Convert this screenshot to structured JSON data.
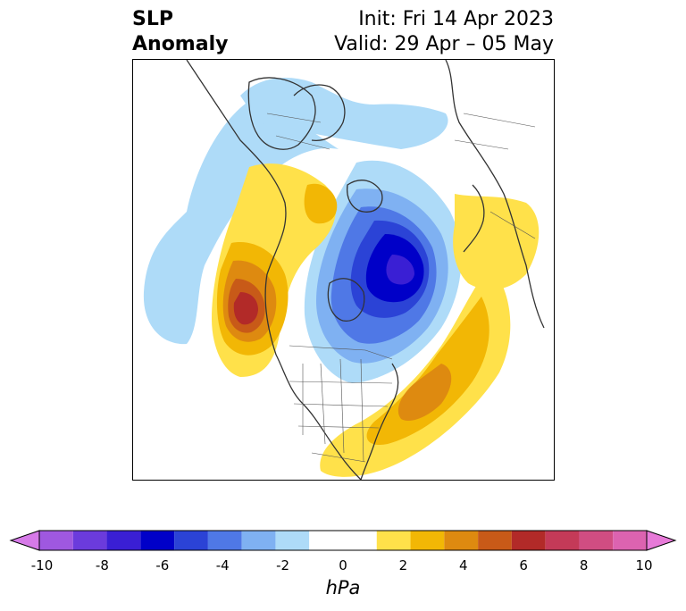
{
  "header": {
    "title_line1": "SLP",
    "title_line2": "Anomaly",
    "init": "Init: Fri 14 Apr 2023",
    "valid": "Valid: 29 Apr – 05 May"
  },
  "colorbar": {
    "unit": "hPa",
    "tick_labels": [
      "-10",
      "-8",
      "-6",
      "-4",
      "-2",
      "0",
      "2",
      "4",
      "6",
      "8",
      "10"
    ],
    "tick_values": [
      -10,
      -8,
      -6,
      -4,
      -2,
      0,
      2,
      4,
      6,
      8,
      10
    ],
    "min": -10,
    "max": 10,
    "bin_edges": [
      -9,
      -8,
      -7,
      -6,
      -5,
      -4,
      -3,
      -2,
      -1,
      1,
      2,
      3,
      4,
      5,
      6,
      7,
      8,
      9
    ],
    "bin_colors": [
      "#9f58e0",
      "#6b3bdc",
      "#3a1fd4",
      "#0000c8",
      "#2b43d6",
      "#4f78e6",
      "#7fb1f2",
      "#aedbf8",
      "#ffffff",
      "#ffe14a",
      "#f2b705",
      "#de8a10",
      "#c85a18",
      "#b22a28",
      "#c43a58",
      "#d04d82",
      "#dc63b0"
    ],
    "under_color": "#d67ae8",
    "over_color": "#e77ad8"
  }
}
